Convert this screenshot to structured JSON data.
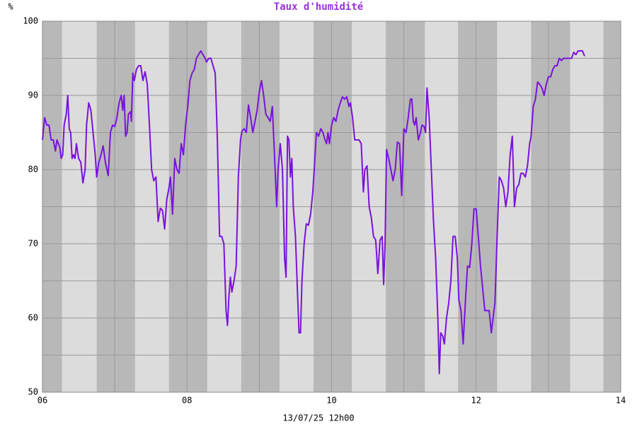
{
  "chart_data": {
    "type": "line",
    "title": "Taux d'humidité",
    "y_unit": "%",
    "x_label": "13/07/25 12h00",
    "xlim": [
      6,
      14
    ],
    "ylim": [
      50,
      100
    ],
    "xticks": [
      {
        "value": 6,
        "label": "06"
      },
      {
        "value": 8,
        "label": "08"
      },
      {
        "value": 10,
        "label": "10"
      },
      {
        "value": 12,
        "label": "12"
      },
      {
        "value": 14,
        "label": "14"
      }
    ],
    "xminor": [
      7,
      9,
      11,
      13
    ],
    "yticks": [
      50,
      60,
      70,
      80,
      90,
      100
    ],
    "yminor": [
      55,
      65,
      75,
      85,
      95
    ],
    "grid": true,
    "shaded_bands": [
      [
        6,
        6.27
      ],
      [
        6.75,
        7.28
      ],
      [
        7.75,
        8.28
      ],
      [
        8.75,
        9.28
      ],
      [
        9.75,
        10.28
      ],
      [
        10.75,
        11.29
      ],
      [
        11.75,
        12.29
      ],
      [
        12.76,
        13.3
      ],
      [
        13.76,
        14
      ]
    ],
    "series": [
      {
        "name": "Taux d'humidité",
        "color": "#7a12dc",
        "x": [
          6,
          6.03,
          6.06,
          6.09,
          6.12,
          6.15,
          6.18,
          6.2,
          6.24,
          6.26,
          6.28,
          6.3,
          6.33,
          6.35,
          6.37,
          6.39,
          6.41,
          6.43,
          6.45,
          6.47,
          6.5,
          6.53,
          6.56,
          6.59,
          6.61,
          6.64,
          6.67,
          6.7,
          6.73,
          6.75,
          6.78,
          6.81,
          6.84,
          6.87,
          6.91,
          6.94,
          6.97,
          7,
          7.03,
          7.06,
          7.09,
          7.11,
          7.13,
          7.15,
          7.17,
          7.19,
          7.22,
          7.23,
          7.25,
          7.27,
          7.3,
          7.33,
          7.36,
          7.39,
          7.42,
          7.45,
          7.48,
          7.51,
          7.54,
          7.57,
          7.6,
          7.63,
          7.66,
          7.69,
          7.72,
          7.75,
          7.77,
          7.8,
          7.83,
          7.86,
          7.89,
          7.92,
          7.95,
          7.98,
          8.01,
          8.04,
          8.07,
          8.1,
          8.13,
          8.16,
          8.19,
          8.22,
          8.25,
          8.27,
          8.3,
          8.33,
          8.36,
          8.39,
          8.42,
          8.45,
          8.48,
          8.51,
          8.54,
          8.56,
          8.58,
          8.6,
          8.62,
          8.65,
          8.68,
          8.71,
          8.74,
          8.76,
          8.79,
          8.82,
          8.85,
          8.88,
          8.91,
          8.94,
          8.97,
          9,
          9.03,
          9.06,
          9.09,
          9.12,
          9.15,
          9.18,
          9.21,
          9.24,
          9.26,
          9.29,
          9.32,
          9.35,
          9.37,
          9.39,
          9.41,
          9.43,
          9.45,
          9.47,
          9.5,
          9.53,
          9.55,
          9.57,
          9.59,
          9.62,
          9.65,
          9.68,
          9.71,
          9.74,
          9.76,
          9.79,
          9.82,
          9.85,
          9.88,
          9.91,
          9.93,
          9.95,
          9.97,
          10,
          10.03,
          10.06,
          10.09,
          10.12,
          10.15,
          10.18,
          10.21,
          10.24,
          10.26,
          10.29,
          10.32,
          10.35,
          10.38,
          10.41,
          10.44,
          10.46,
          10.49,
          10.52,
          10.55,
          10.58,
          10.61,
          10.64,
          10.67,
          10.7,
          10.72,
          10.74,
          10.76,
          10.79,
          10.82,
          10.85,
          10.88,
          10.91,
          10.94,
          10.97,
          11,
          11.03,
          11.06,
          11.09,
          11.11,
          11.13,
          11.15,
          11.17,
          11.2,
          11.23,
          11.25,
          11.28,
          11.3,
          11.32,
          11.35,
          11.38,
          11.41,
          11.44,
          11.47,
          11.49,
          11.51,
          11.54,
          11.56,
          11.59,
          11.62,
          11.65,
          11.68,
          11.71,
          11.74,
          11.76,
          11.79,
          11.82,
          11.85,
          11.88,
          11.91,
          11.94,
          11.97,
          12,
          12.03,
          12.06,
          12.09,
          12.12,
          12.15,
          12.18,
          12.21,
          12.24,
          12.26,
          12.29,
          12.32,
          12.35,
          12.38,
          12.41,
          12.44,
          12.47,
          12.5,
          12.53,
          12.56,
          12.59,
          12.62,
          12.65,
          12.68,
          12.71,
          12.74,
          12.76,
          12.79,
          12.82,
          12.85,
          12.88,
          12.91,
          12.94,
          12.97,
          13,
          13.03,
          13.06,
          13.09,
          13.12,
          13.15,
          13.18,
          13.21,
          13.24,
          13.26,
          13.29,
          13.32,
          13.35,
          13.38,
          13.41,
          13.44,
          13.47,
          13.5
        ],
        "values": [
          84,
          87,
          86,
          86,
          84,
          84,
          82.5,
          84,
          83,
          81.5,
          82,
          86,
          87.5,
          90,
          85.5,
          85,
          81.5,
          82,
          81.5,
          83.5,
          81.5,
          81,
          78.2,
          80,
          86,
          89,
          88,
          85,
          82,
          79,
          81,
          82,
          83.2,
          81,
          79.2,
          85,
          86,
          85.8,
          87,
          89,
          90,
          88,
          90,
          84.5,
          85,
          87.5,
          87.8,
          86.5,
          93,
          92,
          93.5,
          94,
          94,
          92,
          93.2,
          91.5,
          86,
          80,
          78.5,
          79,
          73,
          74.8,
          74.5,
          72,
          76,
          77.5,
          79,
          74,
          81.5,
          80,
          79.5,
          83.5,
          82,
          86,
          88.5,
          92,
          93,
          93.5,
          95,
          95.5,
          96,
          95.5,
          95,
          94.5,
          95,
          95,
          94,
          93,
          84,
          71,
          71,
          70,
          61,
          59,
          63,
          65.5,
          63.5,
          65,
          67,
          79,
          84,
          85.2,
          85.5,
          85,
          88.7,
          87,
          85,
          86.5,
          88,
          90.5,
          92,
          90,
          87.5,
          87,
          86.5,
          88.5,
          82,
          75,
          80,
          83.5,
          80,
          68,
          65.5,
          84.5,
          84,
          79,
          81.5,
          75,
          71,
          63,
          58,
          58,
          65,
          70,
          72.7,
          72.5,
          74,
          77,
          80,
          85,
          84.5,
          85.5,
          85,
          84,
          83.5,
          85,
          83.5,
          86,
          87,
          86.5,
          88,
          89,
          89.8,
          89.5,
          89.8,
          88.5,
          89,
          87,
          84,
          84,
          84,
          83.5,
          77,
          80,
          80.5,
          75,
          73.5,
          71,
          70.5,
          66,
          70.5,
          71,
          64.5,
          70,
          82.7,
          81.5,
          80,
          78.5,
          80,
          83.7,
          83.5,
          76.5,
          85.5,
          85,
          87,
          89.5,
          89.5,
          86.5,
          86,
          87,
          84,
          85,
          86,
          85.8,
          85,
          91,
          87,
          80,
          73,
          68,
          60,
          52.5,
          58,
          57.5,
          56.5,
          60,
          62,
          65,
          71,
          71,
          68,
          62.5,
          61,
          56.5,
          62,
          67,
          66.8,
          70,
          74.7,
          74.7,
          71,
          67,
          64,
          61,
          61,
          61,
          58,
          60.5,
          62,
          71,
          79,
          78.5,
          77.5,
          75,
          77,
          82,
          84.5,
          75,
          77.5,
          78,
          79.5,
          79.5,
          79,
          80.5,
          83.5,
          84.5,
          88.5,
          89.5,
          91.8,
          91.5,
          91,
          90,
          91.5,
          92.5,
          92.5,
          93.5,
          94,
          94,
          95,
          94.7,
          95,
          95,
          95,
          95,
          95,
          95.8,
          95.5,
          96,
          96,
          96,
          95.3
        ]
      }
    ]
  }
}
